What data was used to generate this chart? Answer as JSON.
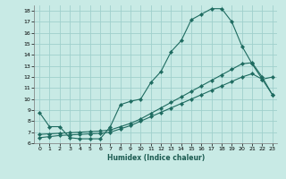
{
  "xlabel": "Humidex (Indice chaleur)",
  "bg_color": "#c8eae5",
  "grid_color": "#a0d0cc",
  "line_color": "#1e6b60",
  "xlim": [
    -0.5,
    23.5
  ],
  "ylim": [
    6,
    18.5
  ],
  "xticks": [
    0,
    1,
    2,
    3,
    4,
    5,
    6,
    7,
    8,
    9,
    10,
    11,
    12,
    13,
    14,
    15,
    16,
    17,
    18,
    19,
    20,
    21,
    22,
    23
  ],
  "yticks": [
    6,
    7,
    8,
    9,
    10,
    11,
    12,
    13,
    14,
    15,
    16,
    17,
    18
  ],
  "series1_x": [
    0,
    1,
    2,
    3,
    4,
    5,
    6,
    7,
    8,
    9,
    10,
    11,
    12,
    13,
    14,
    15,
    16,
    17,
    18,
    19,
    20,
    21,
    22,
    23
  ],
  "series1_y": [
    8.8,
    7.5,
    7.5,
    6.5,
    6.4,
    6.4,
    6.4,
    7.5,
    9.5,
    9.8,
    10.0,
    11.5,
    12.5,
    14.3,
    15.3,
    17.2,
    17.7,
    18.2,
    18.2,
    17.0,
    14.8,
    13.2,
    11.8,
    12.0
  ],
  "series2_x": [
    0,
    1,
    2,
    3,
    4,
    5,
    6,
    7,
    8,
    9,
    10,
    11,
    12,
    13,
    14,
    15,
    16,
    17,
    18,
    19,
    20,
    21,
    22,
    23
  ],
  "series2_y": [
    6.8,
    6.85,
    6.9,
    6.95,
    7.0,
    7.05,
    7.1,
    7.2,
    7.5,
    7.8,
    8.2,
    8.7,
    9.2,
    9.7,
    10.2,
    10.7,
    11.2,
    11.7,
    12.2,
    12.7,
    13.2,
    13.3,
    12.0,
    10.4
  ],
  "series3_x": [
    0,
    1,
    2,
    3,
    4,
    5,
    6,
    7,
    8,
    9,
    10,
    11,
    12,
    13,
    14,
    15,
    16,
    17,
    18,
    19,
    20,
    21,
    22,
    23
  ],
  "series3_y": [
    6.5,
    6.6,
    6.7,
    6.75,
    6.8,
    6.85,
    6.9,
    7.0,
    7.3,
    7.6,
    8.0,
    8.4,
    8.8,
    9.2,
    9.6,
    10.0,
    10.4,
    10.8,
    11.2,
    11.6,
    12.0,
    12.3,
    11.8,
    10.4
  ]
}
